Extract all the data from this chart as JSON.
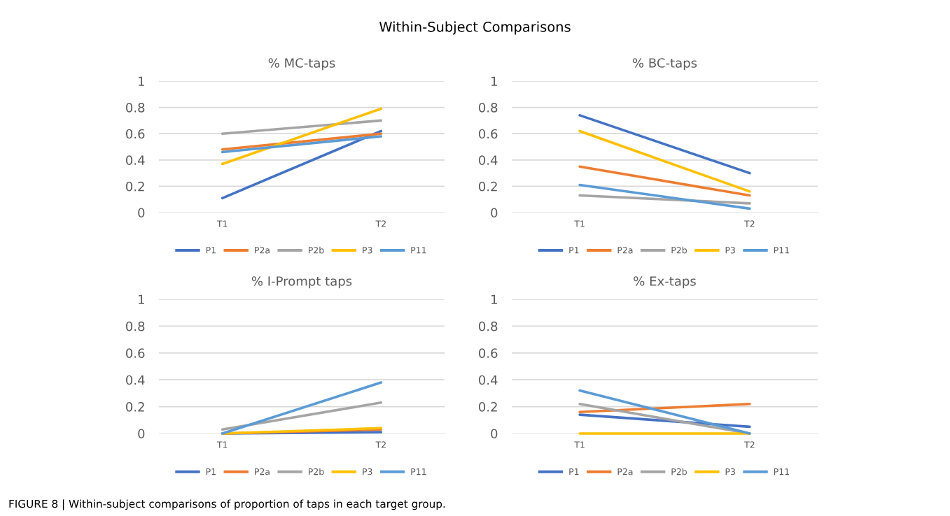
{
  "chart_data": [
    {
      "type": "line",
      "title": "% MC-taps",
      "categories": [
        "T1",
        "T2"
      ],
      "ylim": [
        0,
        1
      ],
      "yticks": [
        0,
        0.2,
        0.4,
        0.6,
        0.8,
        1
      ],
      "grid": "y",
      "legend": "bottom",
      "annotations": [
        "Within-Subject Comparisons",
        "FIGURE 8 | Within-subject comparisons of proportion of taps in each target group."
      ],
      "series": [
        {
          "name": "P1",
          "color": "#4472c4",
          "values": [
            0.11,
            0.62
          ]
        },
        {
          "name": "P2a",
          "color": "#ed7d31",
          "values": [
            0.48,
            0.6
          ]
        },
        {
          "name": "P2b",
          "color": "#a5a5a5",
          "values": [
            0.6,
            0.7
          ]
        },
        {
          "name": "P3",
          "color": "#ffc000",
          "values": [
            0.37,
            0.79
          ]
        },
        {
          "name": "P11",
          "color": "#5b9bd5",
          "values": [
            0.46,
            0.58
          ]
        }
      ]
    },
    {
      "type": "line",
      "title": "% BC-taps",
      "categories": [
        "T1",
        "T2"
      ],
      "ylim": [
        0,
        1
      ],
      "yticks": [
        0,
        0.2,
        0.4,
        0.6,
        0.8,
        1
      ],
      "grid": "y",
      "legend": "bottom",
      "series": [
        {
          "name": "P1",
          "color": "#4472c4",
          "values": [
            0.74,
            0.3
          ]
        },
        {
          "name": "P2a",
          "color": "#ed7d31",
          "values": [
            0.35,
            0.13
          ]
        },
        {
          "name": "P2b",
          "color": "#a5a5a5",
          "values": [
            0.13,
            0.07
          ]
        },
        {
          "name": "P3",
          "color": "#ffc000",
          "values": [
            0.62,
            0.16
          ]
        },
        {
          "name": "P11",
          "color": "#5b9bd5",
          "values": [
            0.21,
            0.03
          ]
        }
      ]
    },
    {
      "type": "line",
      "title": "% I-Prompt taps",
      "categories": [
        "T1",
        "T2"
      ],
      "ylim": [
        0,
        1
      ],
      "yticks": [
        0,
        0.2,
        0.4,
        0.6,
        0.8,
        1
      ],
      "grid": "y",
      "legend": "bottom",
      "series": [
        {
          "name": "P1",
          "color": "#4472c4",
          "values": [
            0,
            0.01
          ]
        },
        {
          "name": "P2a",
          "color": "#ed7d31",
          "values": [
            0,
            0.03
          ]
        },
        {
          "name": "P2b",
          "color": "#a5a5a5",
          "values": [
            0.03,
            0.23
          ]
        },
        {
          "name": "P3",
          "color": "#ffc000",
          "values": [
            0,
            0.04
          ]
        },
        {
          "name": "P11",
          "color": "#5b9bd5",
          "values": [
            0,
            0.38
          ]
        }
      ]
    },
    {
      "type": "line",
      "title": "% Ex-taps",
      "categories": [
        "T1",
        "T2"
      ],
      "ylim": [
        0,
        1
      ],
      "yticks": [
        0,
        0.2,
        0.4,
        0.6,
        0.8,
        1
      ],
      "grid": "y",
      "legend": "bottom",
      "series": [
        {
          "name": "P1",
          "color": "#4472c4",
          "values": [
            0.14,
            0.05
          ]
        },
        {
          "name": "P2a",
          "color": "#ed7d31",
          "values": [
            0.16,
            0.22
          ]
        },
        {
          "name": "P2b",
          "color": "#a5a5a5",
          "values": [
            0.22,
            0
          ]
        },
        {
          "name": "P3",
          "color": "#ffc000",
          "values": [
            0,
            0
          ]
        },
        {
          "name": "P11",
          "color": "#5b9bd5",
          "values": [
            0.32,
            0
          ]
        }
      ]
    }
  ]
}
